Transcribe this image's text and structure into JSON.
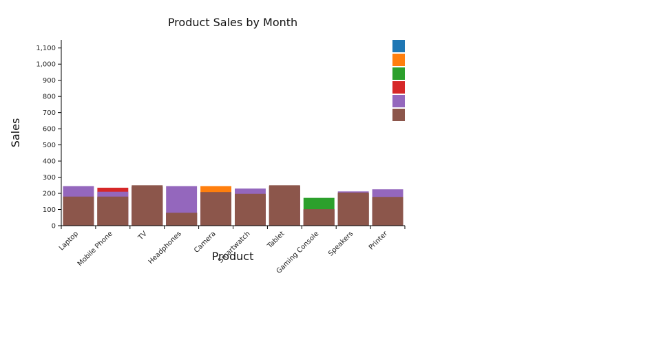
{
  "chart_data": {
    "type": "bar",
    "barmode": "overlay",
    "title": "Product Sales by Month",
    "xlabel": "Product",
    "ylabel": "Sales",
    "categories": [
      "Laptop",
      "Mobile Phone",
      "TV",
      "Headphones",
      "Camera",
      "Smartwatch",
      "Tablet",
      "Gaming Console",
      "Speakers",
      "Printer"
    ],
    "ylim": [
      0,
      1150
    ],
    "yticks": [
      0,
      100,
      200,
      300,
      400,
      500,
      600,
      700,
      800,
      900,
      1000,
      1100
    ],
    "ytick_labels": [
      "0",
      "100",
      "200",
      "300",
      "400",
      "500",
      "600",
      "700",
      "800",
      "900",
      "1,000",
      "1,100"
    ],
    "grid": false,
    "legend_position": "top-right",
    "series": [
      {
        "color": "#1f77b4",
        "values": [
          180,
          175,
          240,
          80,
          205,
          195,
          245,
          100,
          200,
          175
        ]
      },
      {
        "color": "#ff7f0e",
        "values": [
          180,
          175,
          240,
          80,
          245,
          195,
          245,
          100,
          200,
          175
        ]
      },
      {
        "color": "#2ca02c",
        "values": [
          180,
          175,
          240,
          80,
          205,
          195,
          245,
          172,
          200,
          175
        ]
      },
      {
        "color": "#d62728",
        "values": [
          180,
          235,
          240,
          80,
          205,
          195,
          245,
          100,
          200,
          175
        ]
      },
      {
        "color": "#9467bd",
        "values": [
          245,
          210,
          245,
          245,
          205,
          230,
          245,
          100,
          212,
          225
        ]
      },
      {
        "color": "#8c564b",
        "values": [
          180,
          180,
          250,
          80,
          208,
          197,
          250,
          102,
          205,
          178
        ]
      }
    ]
  }
}
